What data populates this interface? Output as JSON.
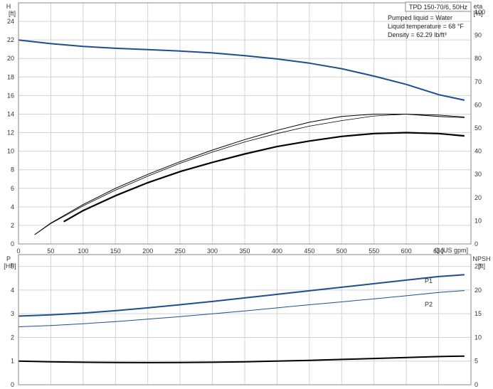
{
  "chart_data": {
    "type": "line",
    "title": "TPD 150-70/6, 50Hz",
    "info": [
      "Pumped liquid = Water",
      "Liquid temperature = 68 °F",
      "Density = 62.29 lb/ft³"
    ],
    "colors": {
      "blue": "#1f4e8c",
      "black": "#000000",
      "grid": "#d3d3d3"
    },
    "top": {
      "left_axis": {
        "label_line1": "H",
        "label_line2": "[ft]",
        "range": [
          0,
          26
        ],
        "ticks": [
          0,
          2,
          4,
          6,
          8,
          10,
          12,
          14,
          16,
          18,
          20,
          22,
          24
        ]
      },
      "right_axis": {
        "label_line1": "eta",
        "label_line2": "[%]",
        "range": [
          0,
          104
        ],
        "ticks": [
          0,
          10,
          20,
          30,
          40,
          50,
          60,
          70,
          80,
          90,
          100
        ]
      },
      "x_axis": {
        "label": "Q [US gpm]",
        "range": [
          0,
          700
        ],
        "ticks": [
          0,
          50,
          100,
          150,
          200,
          250,
          300,
          350,
          400,
          450,
          500,
          550,
          600,
          650
        ]
      },
      "series": [
        {
          "axis": "left",
          "color": "blue",
          "width": 2,
          "x": [
            0,
            50,
            100,
            150,
            200,
            250,
            300,
            350,
            400,
            450,
            500,
            550,
            600,
            650,
            690
          ],
          "y": [
            22,
            21.6,
            21.3,
            21.1,
            20.95,
            20.8,
            20.6,
            20.3,
            19.95,
            19.5,
            18.9,
            18.1,
            17.2,
            16.1,
            15.5
          ]
        },
        {
          "axis": "right",
          "color": "black",
          "width": 1,
          "x": [
            25,
            50,
            100,
            150,
            200,
            250,
            300,
            350,
            400,
            450,
            500,
            550,
            600,
            650,
            690
          ],
          "y": [
            4,
            9,
            17,
            24,
            30,
            35.5,
            40.5,
            45,
            49,
            52.5,
            55,
            56,
            56,
            55,
            54.5
          ]
        },
        {
          "axis": "left",
          "color": "black",
          "width": 2.2,
          "x": [
            70,
            100,
            150,
            200,
            250,
            300,
            350,
            400,
            450,
            500,
            550,
            600,
            650,
            690
          ],
          "y": [
            2.4,
            3.6,
            5.2,
            6.6,
            7.8,
            8.8,
            9.7,
            10.5,
            11.1,
            11.6,
            11.9,
            12.0,
            11.9,
            11.65
          ]
        },
        {
          "axis": "left",
          "color": "black",
          "width": 0.8,
          "x": [
            25,
            50,
            100,
            150,
            200,
            250,
            300,
            350,
            400,
            450,
            500,
            550,
            600,
            650,
            690
          ],
          "y": [
            1.0,
            2.2,
            4.1,
            5.8,
            7.3,
            8.7,
            9.9,
            11.0,
            11.9,
            12.7,
            13.3,
            13.8,
            14.0,
            13.9,
            13.7
          ]
        }
      ]
    },
    "bottom": {
      "left_axis": {
        "label_line1": "P",
        "label_line2": "[HP]",
        "range": [
          0,
          5.5
        ],
        "ticks": [
          0,
          1,
          2,
          3,
          4,
          5
        ]
      },
      "right_axis": {
        "label_line1": "NPSH",
        "label_line2": "[ft]",
        "range": [
          0,
          27.5
        ],
        "ticks": [
          0,
          5,
          10,
          15,
          20,
          25
        ]
      },
      "x_axis": {
        "range": [
          0,
          700
        ]
      },
      "series": [
        {
          "name": "P1",
          "axis": "left",
          "color": "blue",
          "width": 2,
          "x": [
            0,
            50,
            100,
            150,
            200,
            250,
            300,
            350,
            400,
            450,
            500,
            550,
            600,
            650,
            690
          ],
          "y": [
            2.9,
            2.95,
            3.03,
            3.13,
            3.25,
            3.38,
            3.52,
            3.67,
            3.82,
            3.97,
            4.12,
            4.27,
            4.42,
            4.57,
            4.65
          ]
        },
        {
          "name": "P2",
          "axis": "left",
          "color": "blue",
          "width": 1,
          "x": [
            0,
            50,
            100,
            150,
            200,
            250,
            300,
            350,
            400,
            450,
            500,
            550,
            600,
            650,
            690
          ],
          "y": [
            2.45,
            2.5,
            2.58,
            2.67,
            2.77,
            2.88,
            3.0,
            3.12,
            3.25,
            3.38,
            3.5,
            3.63,
            3.76,
            3.9,
            3.98
          ]
        },
        {
          "axis": "right",
          "color": "black",
          "width": 2,
          "x": [
            0,
            50,
            100,
            150,
            200,
            250,
            300,
            350,
            400,
            450,
            500,
            550,
            600,
            650,
            690
          ],
          "y": [
            5.0,
            4.85,
            4.75,
            4.7,
            4.68,
            4.7,
            4.75,
            4.85,
            5.0,
            5.15,
            5.35,
            5.55,
            5.75,
            5.95,
            6.05
          ]
        }
      ]
    }
  }
}
